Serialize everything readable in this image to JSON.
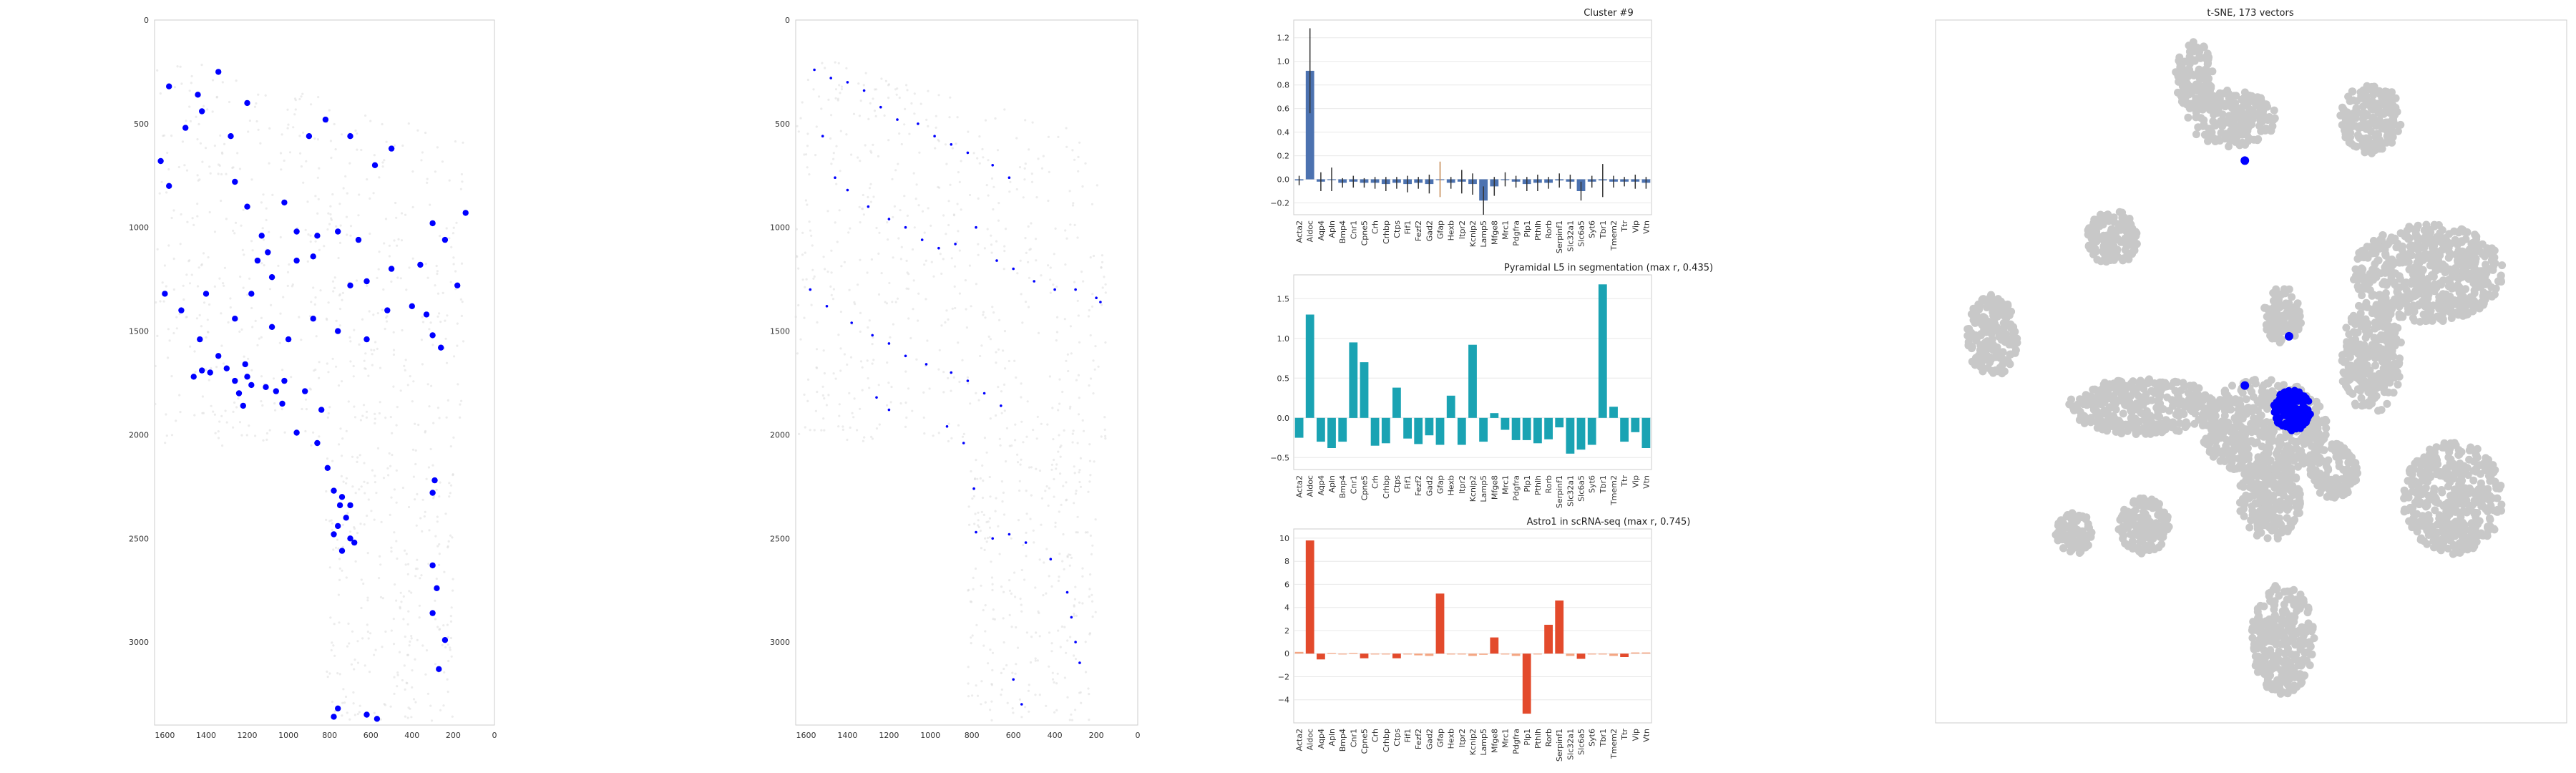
{
  "chart_data": [
    {
      "type": "scatter",
      "x_ticks": [
        1600,
        1400,
        1200,
        1000,
        800,
        600,
        400,
        200,
        0
      ],
      "y_ticks": [
        0,
        500,
        1000,
        1500,
        2000,
        2500,
        3000
      ],
      "xlim": [
        1650,
        0
      ],
      "ylim": [
        0,
        3400
      ],
      "marker_color": "#0000ff",
      "background_color": "#dcdcdc",
      "points": [
        [
          1580,
          320
        ],
        [
          1440,
          360
        ],
        [
          1340,
          250
        ],
        [
          1500,
          520
        ],
        [
          1420,
          440
        ],
        [
          1200,
          400
        ],
        [
          1280,
          560
        ],
        [
          900,
          560
        ],
        [
          820,
          480
        ],
        [
          700,
          560
        ],
        [
          500,
          620
        ],
        [
          580,
          700
        ],
        [
          1620,
          680
        ],
        [
          1260,
          780
        ],
        [
          1200,
          900
        ],
        [
          1020,
          880
        ],
        [
          1130,
          1040
        ],
        [
          960,
          1020
        ],
        [
          860,
          1040
        ],
        [
          760,
          1020
        ],
        [
          660,
          1060
        ],
        [
          1580,
          800
        ],
        [
          1100,
          1120
        ],
        [
          1150,
          1160
        ],
        [
          960,
          1160
        ],
        [
          1080,
          1240
        ],
        [
          880,
          1140
        ],
        [
          700,
          1280
        ],
        [
          620,
          1260
        ],
        [
          500,
          1200
        ],
        [
          360,
          1180
        ],
        [
          300,
          980
        ],
        [
          240,
          1060
        ],
        [
          140,
          930
        ],
        [
          180,
          1280
        ],
        [
          1600,
          1320
        ],
        [
          1520,
          1400
        ],
        [
          1400,
          1320
        ],
        [
          1180,
          1320
        ],
        [
          1260,
          1440
        ],
        [
          1080,
          1480
        ],
        [
          1000,
          1540
        ],
        [
          880,
          1440
        ],
        [
          760,
          1500
        ],
        [
          620,
          1540
        ],
        [
          520,
          1400
        ],
        [
          400,
          1380
        ],
        [
          330,
          1420
        ],
        [
          300,
          1520
        ],
        [
          260,
          1580
        ],
        [
          1430,
          1540
        ],
        [
          1340,
          1620
        ],
        [
          1300,
          1680
        ],
        [
          1260,
          1740
        ],
        [
          1240,
          1800
        ],
        [
          1200,
          1720
        ],
        [
          1210,
          1660
        ],
        [
          1180,
          1760
        ],
        [
          1220,
          1860
        ],
        [
          1420,
          1690
        ],
        [
          1460,
          1720
        ],
        [
          1380,
          1700
        ],
        [
          1110,
          1770
        ],
        [
          1060,
          1790
        ],
        [
          1020,
          1740
        ],
        [
          1030,
          1850
        ],
        [
          920,
          1790
        ],
        [
          840,
          1880
        ],
        [
          960,
          1990
        ],
        [
          860,
          2040
        ],
        [
          810,
          2160
        ],
        [
          780,
          2270
        ],
        [
          740,
          2300
        ],
        [
          700,
          2340
        ],
        [
          750,
          2340
        ],
        [
          720,
          2400
        ],
        [
          760,
          2440
        ],
        [
          780,
          2480
        ],
        [
          700,
          2500
        ],
        [
          680,
          2520
        ],
        [
          740,
          2560
        ],
        [
          290,
          2220
        ],
        [
          300,
          2280
        ],
        [
          300,
          2630
        ],
        [
          280,
          2740
        ],
        [
          300,
          2860
        ],
        [
          240,
          2990
        ],
        [
          270,
          3130
        ],
        [
          760,
          3320
        ],
        [
          780,
          3360
        ],
        [
          570,
          3370
        ],
        [
          620,
          3350
        ]
      ]
    },
    {
      "type": "scatter",
      "x_ticks": [
        1600,
        1400,
        1200,
        1000,
        800,
        600,
        400,
        200,
        0
      ],
      "y_ticks": [
        0,
        500,
        1000,
        1500,
        2000,
        2500,
        3000
      ],
      "xlim": [
        1650,
        0
      ],
      "ylim": [
        0,
        3400
      ],
      "marker_color": "#0000ff",
      "background_color": "#dcdcdc",
      "points": [
        [
          1560,
          240
        ],
        [
          1480,
          280
        ],
        [
          1400,
          300
        ],
        [
          1320,
          340
        ],
        [
          1240,
          420
        ],
        [
          1160,
          480
        ],
        [
          1060,
          500
        ],
        [
          980,
          560
        ],
        [
          900,
          600
        ],
        [
          820,
          640
        ],
        [
          700,
          700
        ],
        [
          620,
          760
        ],
        [
          1520,
          560
        ],
        [
          1460,
          760
        ],
        [
          1400,
          820
        ],
        [
          1300,
          900
        ],
        [
          1200,
          960
        ],
        [
          1120,
          1000
        ],
        [
          1040,
          1060
        ],
        [
          960,
          1100
        ],
        [
          880,
          1080
        ],
        [
          780,
          1000
        ],
        [
          680,
          1160
        ],
        [
          600,
          1200
        ],
        [
          500,
          1260
        ],
        [
          400,
          1300
        ],
        [
          300,
          1300
        ],
        [
          200,
          1340
        ],
        [
          180,
          1360
        ],
        [
          1580,
          1300
        ],
        [
          1500,
          1380
        ],
        [
          1380,
          1460
        ],
        [
          1280,
          1520
        ],
        [
          1200,
          1560
        ],
        [
          1120,
          1620
        ],
        [
          1020,
          1660
        ],
        [
          900,
          1700
        ],
        [
          820,
          1740
        ],
        [
          740,
          1800
        ],
        [
          660,
          1860
        ],
        [
          1260,
          1820
        ],
        [
          1200,
          1880
        ],
        [
          920,
          1960
        ],
        [
          840,
          2040
        ],
        [
          790,
          2260
        ],
        [
          780,
          2470
        ],
        [
          700,
          2500
        ],
        [
          620,
          2480
        ],
        [
          540,
          2520
        ],
        [
          420,
          2600
        ],
        [
          340,
          2760
        ],
        [
          320,
          2880
        ],
        [
          300,
          3000
        ],
        [
          280,
          3100
        ],
        [
          600,
          3180
        ],
        [
          560,
          3300
        ]
      ]
    },
    {
      "type": "bar",
      "title": "Cluster #9",
      "categories": [
        "Acta2",
        "Aldoc",
        "Aqp4",
        "Apln",
        "Bmp4",
        "Cnr1",
        "Cpne5",
        "Crh",
        "Crhbp",
        "Ctps",
        "Fif1",
        "Fezf2",
        "Gad2",
        "Gfap",
        "Hexb",
        "Itpr2",
        "Kcnip2",
        "Lamp5",
        "Mfge8",
        "Mrc1",
        "Pdgfra",
        "Plp1",
        "Pthlh",
        "Rorb",
        "Serpinf1",
        "Slc32a1",
        "Slc6a5",
        "Syt6",
        "Tbr1",
        "Tmem2",
        "Ttr",
        "Vip",
        "Vtn"
      ],
      "values": [
        -0.01,
        0.92,
        -0.02,
        0.0,
        -0.03,
        -0.02,
        -0.03,
        -0.03,
        -0.04,
        -0.03,
        -0.04,
        -0.03,
        -0.04,
        0.0,
        -0.03,
        -0.02,
        -0.04,
        -0.18,
        -0.06,
        0.0,
        -0.02,
        -0.04,
        -0.03,
        -0.03,
        -0.01,
        -0.02,
        -0.1,
        -0.02,
        -0.01,
        -0.02,
        -0.02,
        -0.02,
        -0.03
      ],
      "errors": [
        0.04,
        0.36,
        0.08,
        0.1,
        0.04,
        0.05,
        0.04,
        0.05,
        0.06,
        0.05,
        0.07,
        0.05,
        0.08,
        0.15,
        0.05,
        0.1,
        0.09,
        0.12,
        0.08,
        0.06,
        0.05,
        0.06,
        0.07,
        0.05,
        0.06,
        0.06,
        0.08,
        0.05,
        0.14,
        0.05,
        0.04,
        0.06,
        0.05
      ],
      "ylim": [
        -0.3,
        1.35
      ],
      "y_ticks": [
        -0.2,
        0.0,
        0.2,
        0.4,
        0.6,
        0.8,
        1.0,
        1.2
      ],
      "y_tick_labels": [
        "−0.2",
        "0.0",
        "0.2",
        "0.4",
        "0.6",
        "0.8",
        "1.0",
        "1.2"
      ],
      "color": "#4c72b0"
    },
    {
      "type": "bar",
      "title": "Pyramidal L5 in segmentation (max r, 0.435)",
      "categories": [
        "Acta2",
        "Aldoc",
        "Aqp4",
        "Apln",
        "Bmp4",
        "Cnr1",
        "Cpne5",
        "Crh",
        "Crhbp",
        "Ctps",
        "Fif1",
        "Fezf2",
        "Gad2",
        "Gfap",
        "Hexb",
        "Itpr2",
        "Kcnip2",
        "Lamp5",
        "Mfge8",
        "Mrc1",
        "Pdgfra",
        "Plp1",
        "Pthlh",
        "Rorb",
        "Serpinf1",
        "Slc32a1",
        "Slc6a5",
        "Syt6",
        "Tbr1",
        "Tmem2",
        "Ttr",
        "Vip",
        "Vtn"
      ],
      "values": [
        -0.25,
        1.3,
        -0.3,
        -0.38,
        -0.3,
        0.95,
        0.7,
        -0.35,
        -0.32,
        0.38,
        -0.26,
        -0.33,
        -0.22,
        -0.34,
        0.28,
        -0.34,
        0.92,
        -0.3,
        0.06,
        -0.15,
        -0.28,
        -0.28,
        -0.32,
        -0.27,
        -0.12,
        -0.45,
        -0.4,
        -0.34,
        1.68,
        0.14,
        -0.3,
        -0.18,
        -0.38
      ],
      "ylim": [
        -0.65,
        1.8
      ],
      "y_ticks": [
        -0.5,
        0.0,
        0.5,
        1.0,
        1.5
      ],
      "y_tick_labels": [
        "−0.5",
        "0.0",
        "0.5",
        "1.0",
        "1.5"
      ],
      "color": "#1aa3b3"
    },
    {
      "type": "bar",
      "title": "Astro1 in scRNA-seq (max r, 0.745)",
      "categories": [
        "Acta2",
        "Aldoc",
        "Aqp4",
        "Apln",
        "Bmp4",
        "Cnr1",
        "Cpne5",
        "Crh",
        "Crhbp",
        "Ctps",
        "Fif1",
        "Fezf2",
        "Gad2",
        "Gfap",
        "Hexb",
        "Itpr2",
        "Kcnip2",
        "Lamp5",
        "Mfge8",
        "Mrc1",
        "Pdgfra",
        "Plp1",
        "Pthlh",
        "Rorb",
        "Serpinf1",
        "Slc32a1",
        "Slc6a5",
        "Syt6",
        "Tbr1",
        "Tmem2",
        "Ttr",
        "Vip",
        "Vtn"
      ],
      "values": [
        0.15,
        9.8,
        -0.5,
        0.05,
        0.0,
        0.05,
        -0.4,
        0.0,
        0.0,
        -0.4,
        0.0,
        -0.15,
        -0.2,
        5.2,
        0.0,
        0.0,
        -0.2,
        -0.1,
        1.4,
        0.0,
        -0.2,
        -5.2,
        0.0,
        2.5,
        4.6,
        -0.2,
        -0.45,
        0.0,
        0.0,
        -0.2,
        -0.3,
        0.1,
        0.1
      ],
      "ylim": [
        -6,
        10.8
      ],
      "y_ticks": [
        -4,
        -2,
        0,
        2,
        4,
        6,
        8,
        10
      ],
      "y_tick_labels": [
        "−4",
        "−2",
        "0",
        "2",
        "4",
        "6",
        "8",
        "10"
      ],
      "color": "#e34a2c",
      "faint_color": "#f4a582"
    },
    {
      "type": "scatter",
      "title": "t-SNE, 173 vectors",
      "background_color": "#c8c8c8",
      "highlight_color": "#0000ff",
      "clusters": [
        {
          "cx": 0.41,
          "cy": 0.08,
          "rx": 0.03,
          "ry": 0.05
        },
        {
          "cx": 0.47,
          "cy": 0.14,
          "rx": 0.07,
          "ry": 0.04
        },
        {
          "cx": 0.69,
          "cy": 0.14,
          "rx": 0.05,
          "ry": 0.05
        },
        {
          "cx": 0.28,
          "cy": 0.31,
          "rx": 0.04,
          "ry": 0.04
        },
        {
          "cx": 0.09,
          "cy": 0.45,
          "rx": 0.04,
          "ry": 0.06
        },
        {
          "cx": 0.55,
          "cy": 0.42,
          "rx": 0.03,
          "ry": 0.04
        },
        {
          "cx": 0.78,
          "cy": 0.36,
          "rx": 0.12,
          "ry": 0.07
        },
        {
          "cx": 0.69,
          "cy": 0.48,
          "rx": 0.05,
          "ry": 0.08
        },
        {
          "cx": 0.33,
          "cy": 0.55,
          "rx": 0.12,
          "ry": 0.04
        },
        {
          "cx": 0.52,
          "cy": 0.58,
          "rx": 0.1,
          "ry": 0.07
        },
        {
          "cx": 0.33,
          "cy": 0.72,
          "rx": 0.04,
          "ry": 0.04
        },
        {
          "cx": 0.22,
          "cy": 0.73,
          "rx": 0.03,
          "ry": 0.03
        },
        {
          "cx": 0.53,
          "cy": 0.68,
          "rx": 0.05,
          "ry": 0.06
        },
        {
          "cx": 0.63,
          "cy": 0.64,
          "rx": 0.04,
          "ry": 0.04
        },
        {
          "cx": 0.82,
          "cy": 0.68,
          "rx": 0.08,
          "ry": 0.08
        },
        {
          "cx": 0.55,
          "cy": 0.88,
          "rx": 0.05,
          "ry": 0.08
        }
      ],
      "highlight_points": [
        [
          0.49,
          0.2
        ],
        [
          0.56,
          0.45
        ],
        [
          0.49,
          0.52
        ]
      ],
      "highlight_cluster": {
        "cx": 0.565,
        "cy": 0.555,
        "rx": 0.03,
        "ry": 0.03
      }
    }
  ]
}
